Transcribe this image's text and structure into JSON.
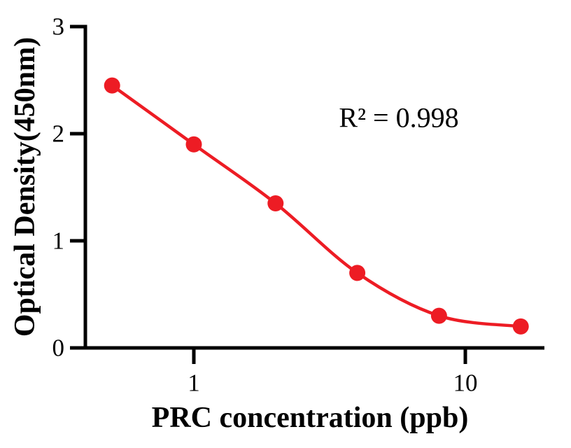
{
  "figure": {
    "background": "#ffffff"
  },
  "chart_data": {
    "type": "scatter",
    "title": "",
    "xlabel": "PRC concentration (ppb)",
    "ylabel": "Optical Density(450nm)",
    "x_scale": "log10",
    "xlim": [
      0.4,
      19.8
    ],
    "ylim": [
      0,
      3
    ],
    "x_ticks": [
      {
        "value": 1,
        "label": "1"
      },
      {
        "value": 10,
        "label": "10"
      }
    ],
    "y_ticks": [
      {
        "value": 0,
        "label": "0"
      },
      {
        "value": 1,
        "label": "1"
      },
      {
        "value": 2,
        "label": "2"
      },
      {
        "value": 3,
        "label": "3"
      }
    ],
    "series": [
      {
        "name": "standard-curve",
        "color": "#ED1C24",
        "marker": "circle",
        "line": "smooth",
        "points": [
          {
            "x": 0.5,
            "y": 2.45
          },
          {
            "x": 1,
            "y": 1.9
          },
          {
            "x": 2,
            "y": 1.35
          },
          {
            "x": 4,
            "y": 0.7
          },
          {
            "x": 8,
            "y": 0.3
          },
          {
            "x": 16,
            "y": 0.2
          }
        ]
      }
    ],
    "annotation": {
      "text": "R² = 0.998"
    },
    "axis_color": "#000000",
    "grid": false,
    "legend": false
  }
}
